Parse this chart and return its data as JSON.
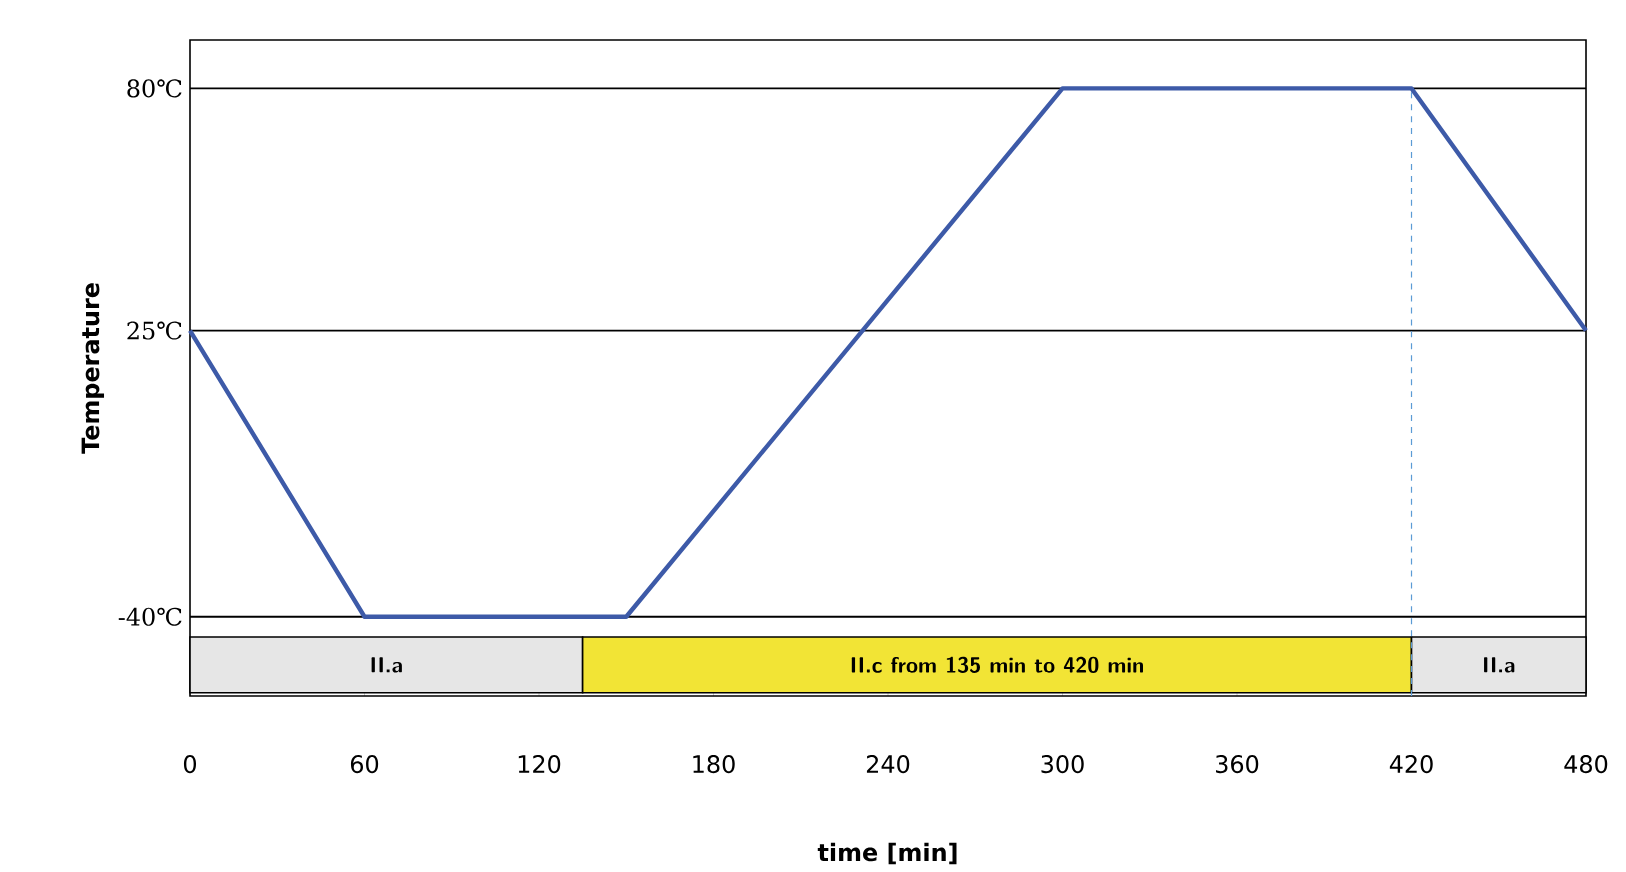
{
  "chart_data": {
    "type": "line",
    "xlabel": "time [min]",
    "ylabel": "Temperature",
    "x": [
      0,
      60,
      150,
      300,
      420,
      480
    ],
    "series": [
      {
        "color": "#3d5aa8",
        "values": [
          25,
          -40,
          -40,
          80,
          80,
          25
        ]
      }
    ],
    "xlim": [
      0,
      480
    ],
    "xticks": [
      0,
      60,
      120,
      180,
      240,
      300,
      360,
      420,
      480
    ],
    "ylim": [
      -58,
      91
    ],
    "yticks": [
      {
        "value": -40,
        "label": "-40℃"
      },
      {
        "value": 25,
        "label": "25℃"
      },
      {
        "value": 80,
        "label": "80℃"
      }
    ],
    "grid": "y",
    "marker": "none",
    "line_style": "solid",
    "bands": [
      {
        "axis": "x",
        "from": 0,
        "to": 135,
        "label": "II.a",
        "color": "#e6e6e6"
      },
      {
        "axis": "x",
        "from": 135,
        "to": 420,
        "label": "II.c from 135 min to 420 min",
        "color": "#f2e435"
      },
      {
        "axis": "x",
        "from": 420,
        "to": 480,
        "label": "II.a",
        "color": "#e6e6e6"
      }
    ],
    "ref_lines": [
      {
        "axis": "x",
        "value": 420,
        "color": "#5b9bd5",
        "line_style": "dashed"
      }
    ]
  }
}
